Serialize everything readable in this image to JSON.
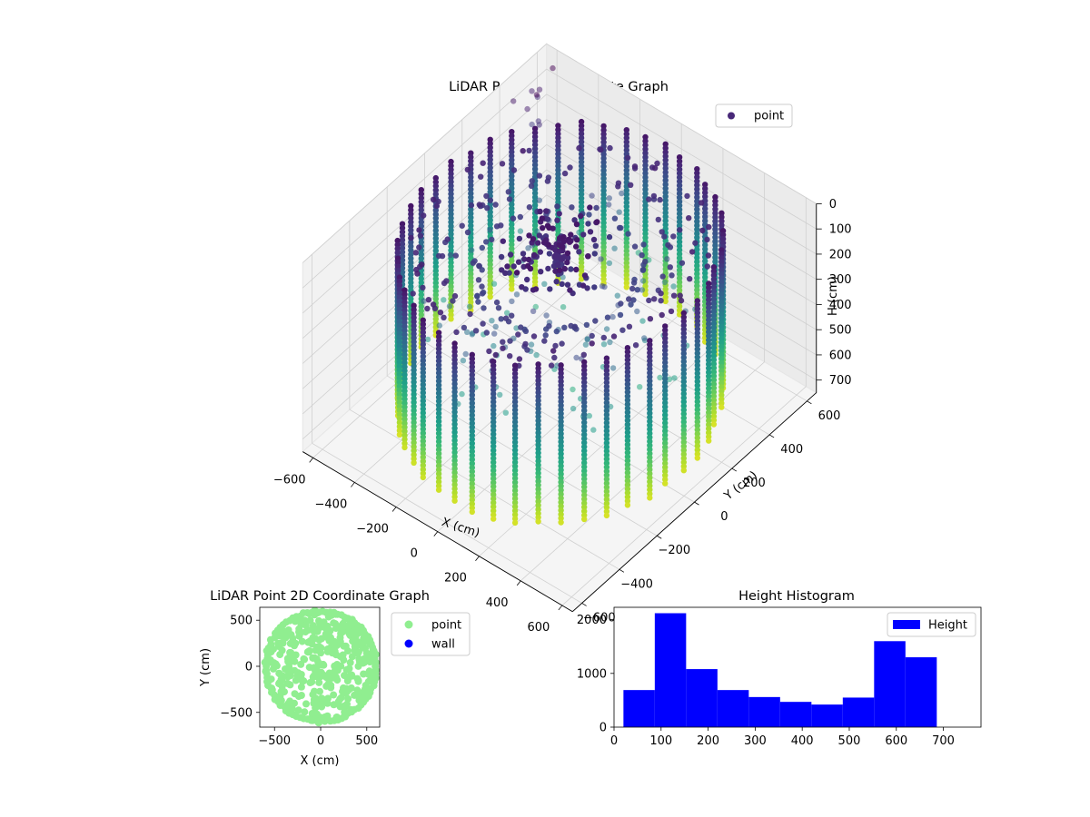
{
  "chart_data": [
    {
      "type": "scatter",
      "projection": "3d",
      "title": "LiDAR Point 3D Coordinate Graph",
      "xlabel": "X (cm)",
      "ylabel": "Y (cm)",
      "zlabel": "H (cm)",
      "xlim": [
        -650,
        650
      ],
      "ylim": [
        -650,
        650
      ],
      "zlim": [
        750,
        0
      ],
      "z_inverted": true,
      "xticks": [
        -600,
        -400,
        -200,
        0,
        200,
        400,
        600
      ],
      "yticks": [
        -600,
        -400,
        -200,
        0,
        200,
        400,
        600
      ],
      "zticks": [
        0,
        100,
        200,
        300,
        400,
        500,
        600,
        700
      ],
      "colormap": "viridis",
      "legend": {
        "placement": "upper right",
        "entries": [
          {
            "label": "point",
            "color": "#482878"
          }
        ]
      },
      "structure": {
        "wall_radius": 580,
        "column_count": 44,
        "column_height_range": [
          40,
          680
        ],
        "ceiling_rings": [
          {
            "radius": 520,
            "height": 60
          },
          {
            "radius": 420,
            "height": 90
          },
          {
            "radius": 300,
            "height": 120
          }
        ]
      },
      "grid": true
    },
    {
      "type": "scatter",
      "title": "LiDAR Point 2D Coordinate Graph",
      "xlabel": "X (cm)",
      "ylabel": "Y (cm)",
      "xlim": [
        -660,
        640
      ],
      "ylim": [
        -660,
        640
      ],
      "xticks": [
        -500,
        0,
        500
      ],
      "yticks": [
        -500,
        0,
        500
      ],
      "footprint_radius": 600,
      "legend": {
        "placement": "outside right",
        "entries": [
          {
            "label": "point",
            "color": "#90ee90"
          },
          {
            "label": "wall",
            "color": "#0000ff"
          }
        ]
      }
    },
    {
      "type": "bar",
      "subtype": "histogram",
      "title": "Height Histogram",
      "bin_edges": [
        20,
        86.6,
        153.2,
        219.8,
        286.4,
        353,
        419.6,
        486.2,
        552.8,
        619.4,
        686
      ],
      "counts": [
        690,
        2120,
        1080,
        690,
        560,
        470,
        420,
        550,
        1600,
        1300
      ],
      "color": "#0000ff",
      "xlim": [
        0,
        780
      ],
      "ylim": [
        0,
        2230
      ],
      "xticks": [
        0,
        100,
        200,
        300,
        400,
        500,
        600,
        700
      ],
      "yticks": [
        0,
        1000,
        2000
      ],
      "legend": {
        "placement": "upper right",
        "entries": [
          {
            "label": "Height",
            "color": "#0000ff"
          }
        ]
      }
    }
  ]
}
